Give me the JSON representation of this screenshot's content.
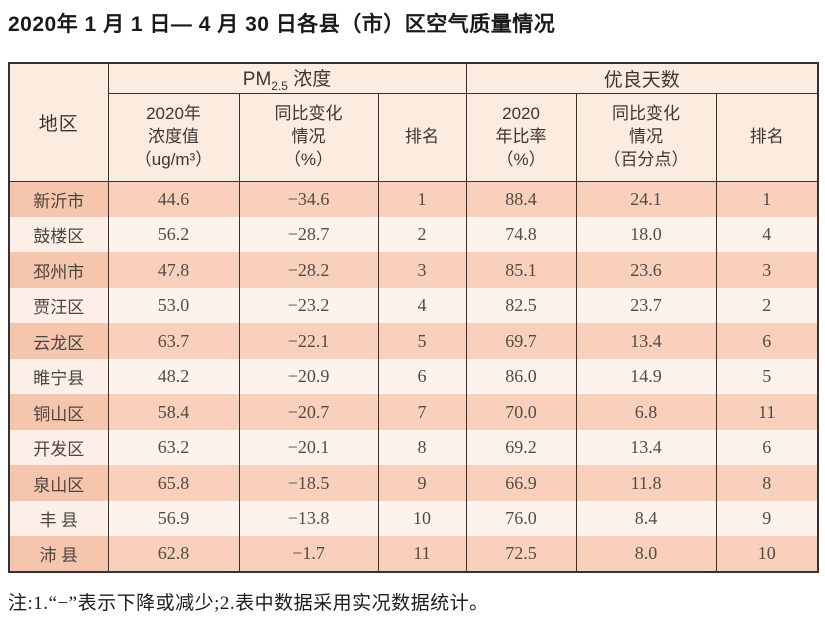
{
  "title": "2020年 1 月 1 日— 4 月 30 日各县（市）区空气质量情况",
  "note": "注:1.“−”表示下降或减少;2.表中数据采用实况数据统计。",
  "colors": {
    "header_bg": "#fcebdf",
    "row_odd_bg": "#f8d0bb",
    "row_odd_region_bg": "#f5c6ad",
    "row_even_bg": "#fdf2ec",
    "border": "#363230"
  },
  "table": {
    "region_header": "地区",
    "pm_group": {
      "prefix": "PM",
      "subscript": "2.5",
      "suffix": " 浓度"
    },
    "days_group": "优良天数",
    "subheaders": [
      "2020年\n浓度值\n（ug/m³）",
      "同比变化\n情况\n（%）",
      "排名",
      "2020\n年比率\n（%）",
      "同比变化\n情况\n（百分点）",
      "排名"
    ]
  },
  "chart_data": {
    "type": "table",
    "title": "2020年 1 月 1 日— 4 月 30 日各县（市）区空气质量情况",
    "column_groups": [
      "地区",
      "PM2.5 浓度",
      "优良天数"
    ],
    "columns": [
      "地区",
      "2020年浓度值（ug/m³）",
      "同比变化情况（%）",
      "排名",
      "2020年比率（%）",
      "同比变化情况（百分点）",
      "排名"
    ],
    "rows": [
      {
        "region": "新沂市",
        "pm_value": "44.6",
        "pm_change": "−34.6",
        "pm_rank": "1",
        "days_rate": "88.4",
        "days_change": "24.1",
        "days_rank": "1"
      },
      {
        "region": "鼓楼区",
        "pm_value": "56.2",
        "pm_change": "−28.7",
        "pm_rank": "2",
        "days_rate": "74.8",
        "days_change": "18.0",
        "days_rank": "4"
      },
      {
        "region": "邳州市",
        "pm_value": "47.8",
        "pm_change": "−28.2",
        "pm_rank": "3",
        "days_rate": "85.1",
        "days_change": "23.6",
        "days_rank": "3"
      },
      {
        "region": "贾汪区",
        "pm_value": "53.0",
        "pm_change": "−23.2",
        "pm_rank": "4",
        "days_rate": "82.5",
        "days_change": "23.7",
        "days_rank": "2"
      },
      {
        "region": "云龙区",
        "pm_value": "63.7",
        "pm_change": "−22.1",
        "pm_rank": "5",
        "days_rate": "69.7",
        "days_change": "13.4",
        "days_rank": "6"
      },
      {
        "region": "睢宁县",
        "pm_value": "48.2",
        "pm_change": "−20.9",
        "pm_rank": "6",
        "days_rate": "86.0",
        "days_change": "14.9",
        "days_rank": "5"
      },
      {
        "region": "铜山区",
        "pm_value": "58.4",
        "pm_change": "−20.7",
        "pm_rank": "7",
        "days_rate": "70.0",
        "days_change": "6.8",
        "days_rank": "11"
      },
      {
        "region": "开发区",
        "pm_value": "63.2",
        "pm_change": "−20.1",
        "pm_rank": "8",
        "days_rate": "69.2",
        "days_change": "13.4",
        "days_rank": "6"
      },
      {
        "region": "泉山区",
        "pm_value": "65.8",
        "pm_change": "−18.5",
        "pm_rank": "9",
        "days_rate": "66.9",
        "days_change": "11.8",
        "days_rank": "8"
      },
      {
        "region": "丰 县",
        "pm_value": "56.9",
        "pm_change": "−13.8",
        "pm_rank": "10",
        "days_rate": "76.0",
        "days_change": "8.4",
        "days_rank": "9"
      },
      {
        "region": "沛 县",
        "pm_value": "62.8",
        "pm_change": "−1.7",
        "pm_rank": "11",
        "days_rate": "72.5",
        "days_change": "8.0",
        "days_rank": "10"
      }
    ]
  }
}
